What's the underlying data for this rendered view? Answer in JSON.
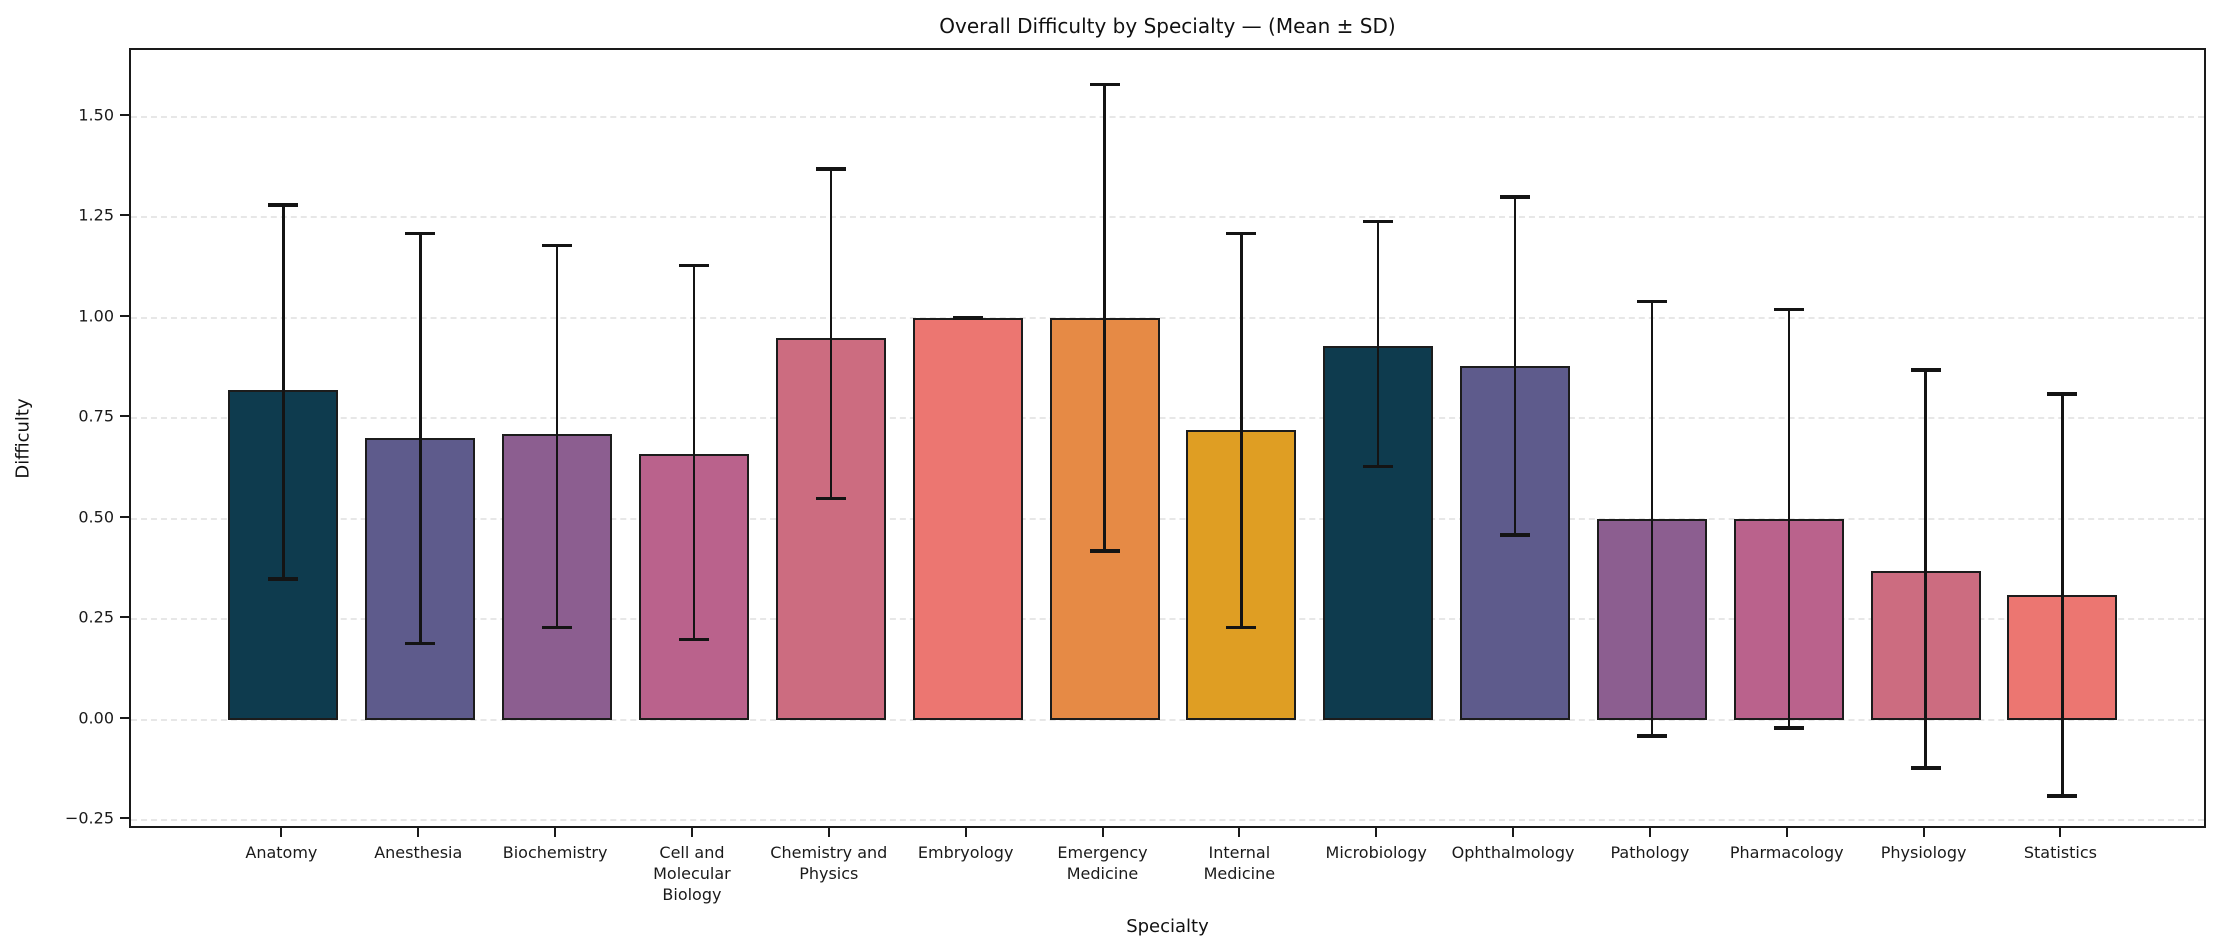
{
  "chart_data": {
    "type": "bar",
    "title": "Overall Difficulty by Specialty — (Mean ± SD)",
    "xlabel": "Specialty",
    "ylabel": "Difficulty",
    "grid": "horizontal-dashed",
    "legend": "none",
    "categories": [
      "Anatomy",
      "Anesthesia",
      "Biochemistry",
      "Cell and\nMolecular\nBiology",
      "Chemistry and\nPhysics",
      "Embryology",
      "Emergency\nMedicine",
      "Internal\nMedicine",
      "Microbiology",
      "Ophthalmology",
      "Pathology",
      "Pharmacology",
      "Physiology",
      "Statistics"
    ],
    "series": [
      {
        "name": "Mean difficulty",
        "values": [
          0.82,
          0.7,
          0.71,
          0.66,
          0.95,
          1.0,
          1.0,
          0.72,
          0.93,
          0.88,
          0.5,
          0.5,
          0.37,
          0.31
        ],
        "error_low": [
          0.35,
          0.19,
          0.23,
          0.2,
          0.55,
          1.0,
          0.42,
          0.23,
          0.63,
          0.46,
          -0.04,
          -0.02,
          -0.12,
          -0.19
        ],
        "error_high": [
          1.28,
          1.21,
          1.18,
          1.13,
          1.37,
          1.0,
          1.58,
          1.21,
          1.24,
          1.3,
          1.04,
          1.02,
          0.87,
          0.81
        ]
      }
    ],
    "bar_colors": [
      "#0e3b4e",
      "#5e5b8c",
      "#8c5e90",
      "#ba628c",
      "#cc6c80",
      "#ec7671",
      "#e68a45",
      "#df9e23",
      "#0e3b4e",
      "#5e5b8c",
      "#8c5e90",
      "#ba628c",
      "#cc6c80",
      "#ec7671"
    ],
    "bar_edge_color": "#1c1c1c",
    "error_color": "#141414",
    "background_color": "#ffffff",
    "gridline_color": "#e7e7e7",
    "yticks": [
      -0.25,
      0.0,
      0.25,
      0.5,
      0.75,
      1.0,
      1.25,
      1.5
    ],
    "ytick_labels": [
      "−0.25",
      "0.00",
      "0.25",
      "0.50",
      "0.75",
      "1.00",
      "1.25",
      "1.50"
    ],
    "ylim": [
      -0.274,
      1.666
    ]
  }
}
